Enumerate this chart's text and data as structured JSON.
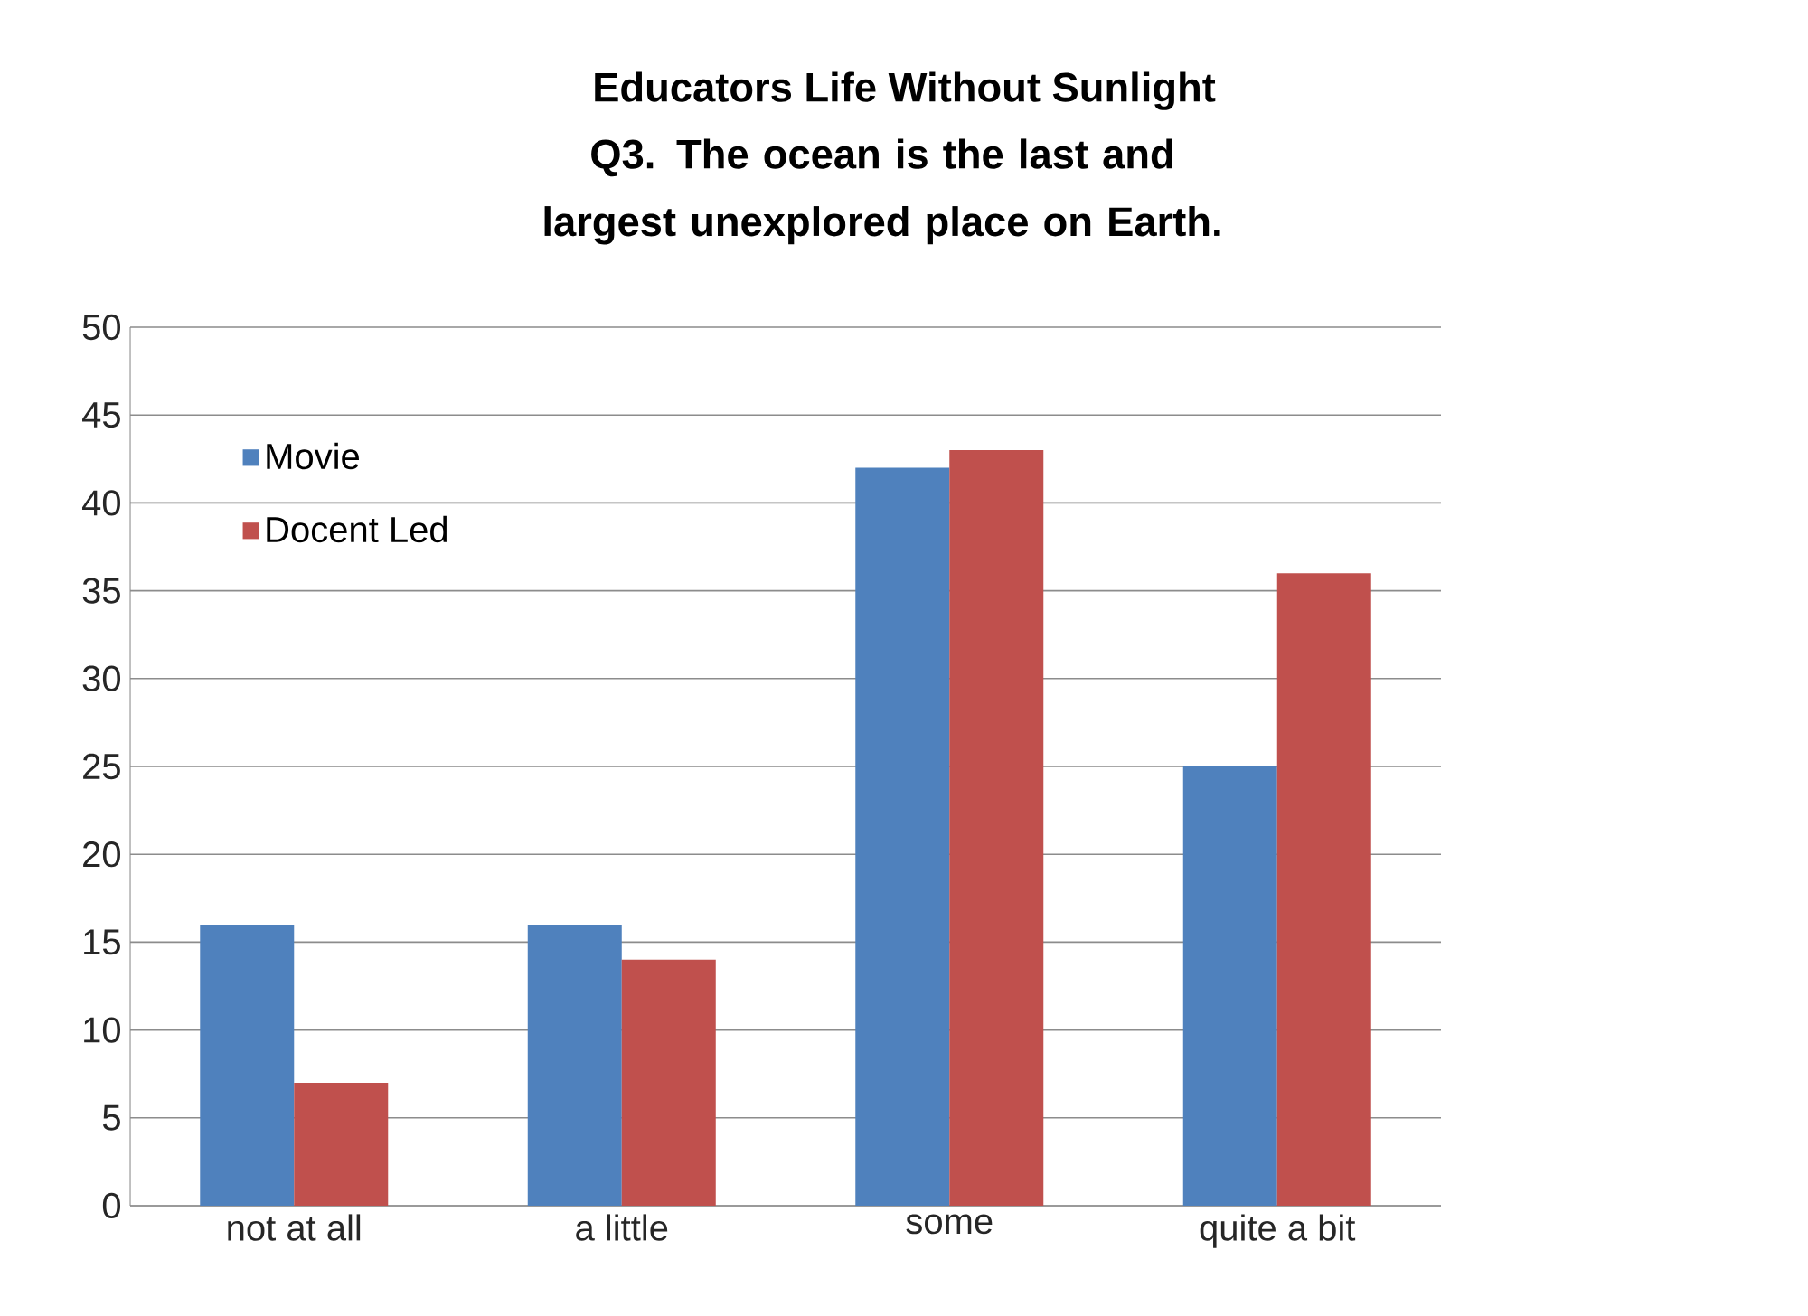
{
  "chart_data": {
    "type": "bar",
    "title": "Educators Life Without Sunlight",
    "subtitle": "Q3. The ocean is the last and largest unexplored place on Earth.",
    "categories": [
      "not at all",
      "a little",
      "some",
      "quite a bit"
    ],
    "series": [
      {
        "name": "Movie",
        "color": "#4f81bd",
        "values": [
          16,
          16,
          42,
          25
        ]
      },
      {
        "name": "Docent Led",
        "color": "#c0504d",
        "values": [
          7,
          14,
          43,
          36
        ]
      }
    ],
    "ylim": [
      0,
      50
    ],
    "yticks": [
      0,
      5,
      10,
      15,
      20,
      25,
      30,
      35,
      40,
      45,
      50
    ],
    "grid": "y",
    "legend": "top left"
  }
}
